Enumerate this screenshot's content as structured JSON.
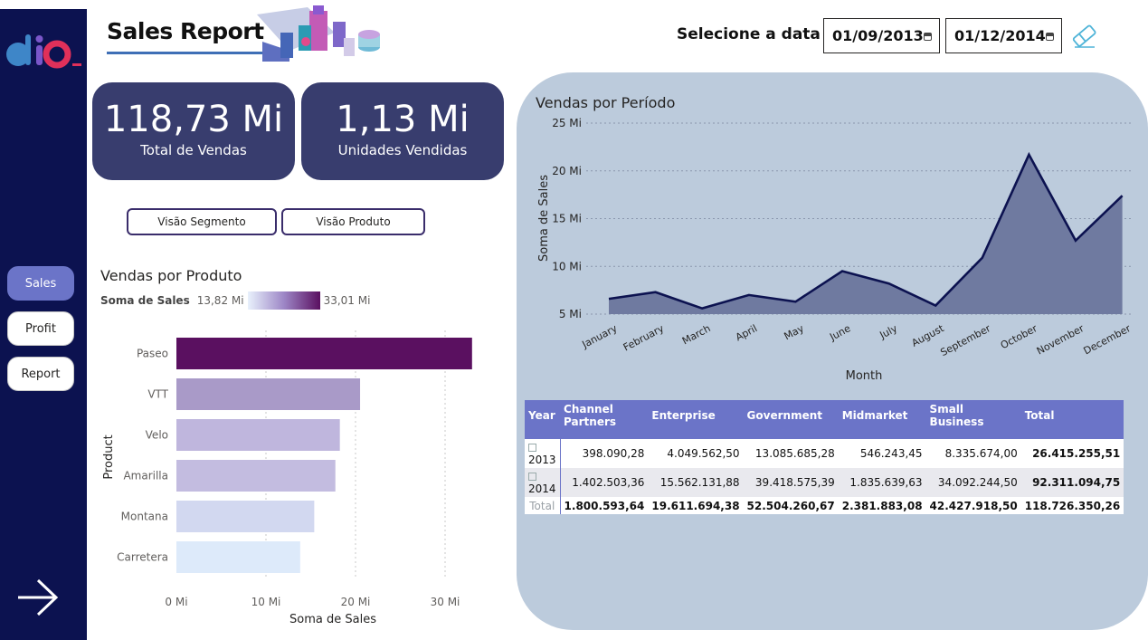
{
  "header": {
    "title": "Sales Report",
    "date_label": "Selecione a data",
    "date_from": "01/09/2013",
    "date_to": "01/12/2014"
  },
  "sidebar": {
    "items": [
      {
        "label": "Sales",
        "active": true
      },
      {
        "label": "Profit",
        "active": false
      },
      {
        "label": "Report",
        "active": false
      }
    ]
  },
  "kpis": [
    {
      "value": "118,73 Mi",
      "label": "Total de Vendas"
    },
    {
      "value": "1,13 Mi",
      "label": "Unidades Vendidas"
    }
  ],
  "view_buttons": [
    "Visão Segmento",
    "Visão Produto"
  ],
  "colors": {
    "sidebar": "#0c1250",
    "kpi_card": "#383d6e",
    "accent": "#6b74c8",
    "panel": "#bccbdc",
    "line": "#0c1250",
    "area": "#6f7aa0"
  },
  "chart_data": [
    {
      "type": "bar",
      "title": "Vendas por Produto",
      "legend": {
        "title": "Soma de  Sales",
        "min_label": "13,82 Mi",
        "max_label": "33,01 Mi"
      },
      "categories": [
        "Paseo",
        "VTT",
        "Velo",
        "Amarilla",
        "Montana",
        "Carretera"
      ],
      "values": [
        33.01,
        20.51,
        18.25,
        17.75,
        15.39,
        13.82
      ],
      "colors": [
        "#5a1060",
        "#a99ac8",
        "#bfb6dd",
        "#c3bce0",
        "#d2d8f0",
        "#ddeafa"
      ],
      "xlabel": "Soma de Sales",
      "ylabel": "Product",
      "xticks": [
        "0 Mi",
        "10 Mi",
        "20 Mi",
        "30 Mi"
      ],
      "xlim": [
        0,
        33.01
      ]
    },
    {
      "type": "area",
      "title": "Vendas por Período",
      "categories": [
        "January",
        "February",
        "March",
        "April",
        "May",
        "June",
        "July",
        "August",
        "September",
        "October",
        "November",
        "December"
      ],
      "values": [
        6.6,
        7.3,
        5.6,
        7.0,
        6.3,
        9.5,
        8.2,
        5.9,
        10.9,
        21.7,
        12.7,
        17.4
      ],
      "xlabel": "Month",
      "ylabel": "Soma de Sales",
      "yticks": [
        "5 Mi",
        "10 Mi",
        "15 Mi",
        "20 Mi",
        "25 Mi"
      ],
      "ylim": [
        5,
        25
      ]
    }
  ],
  "matrix": {
    "headers": [
      "Year",
      "Channel Partners",
      "Enterprise",
      "Government",
      "Midmarket",
      "Small Business",
      "Total"
    ],
    "rows": [
      [
        "2013",
        "398.090,28",
        "4.049.562,50",
        "13.085.685,28",
        "546.243,45",
        "8.335.674,00",
        "26.415.255,51"
      ],
      [
        "2014",
        "1.402.503,36",
        "15.562.131,88",
        "39.418.575,39",
        "1.835.639,63",
        "34.092.244,50",
        "92.311.094,75"
      ]
    ],
    "total": [
      "Total",
      "1.800.593,64",
      "19.611.694,38",
      "52.504.260,67",
      "2.381.883,08",
      "42.427.918,50",
      "118.726.350,26"
    ]
  }
}
